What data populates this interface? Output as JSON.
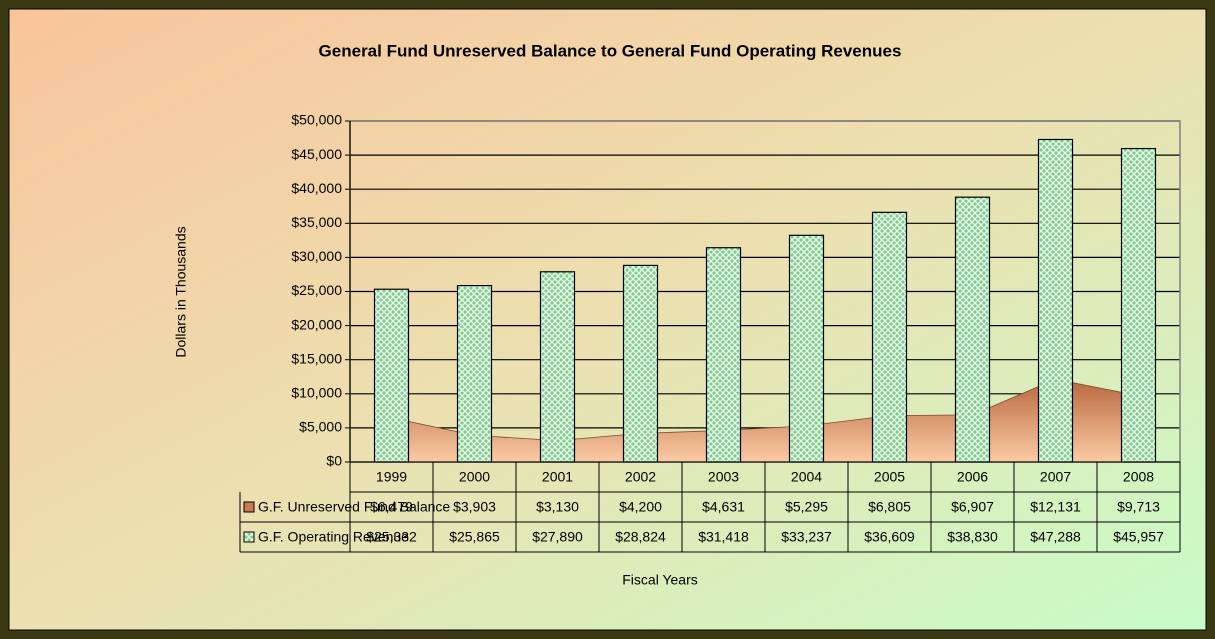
{
  "chart_data": {
    "type": "combo",
    "title": "General Fund Unreserved Balance to General Fund Operating Revenues",
    "y_label": "Dollars in Thousands",
    "x_label": "Fiscal Years",
    "categories": [
      "1999",
      "2000",
      "2001",
      "2002",
      "2003",
      "2004",
      "2005",
      "2006",
      "2007",
      "2008"
    ],
    "series": [
      {
        "name": "G.F. Unreserved Fund Balance",
        "type": "area",
        "color": "#c87a52",
        "values": [
          6479,
          3903,
          3130,
          4200,
          4631,
          5295,
          6805,
          6907,
          12131,
          9713
        ],
        "value_labels": [
          "$6,479",
          "$3,903",
          "$3,130",
          "$4,200",
          "$4,631",
          "$5,295",
          "$6,805",
          "$6,907",
          "$12,131",
          "$9,713"
        ]
      },
      {
        "name": "G.F. Operating Revenue",
        "type": "bar",
        "color": "#8fd49c",
        "values": [
          25332,
          25865,
          27890,
          28824,
          31418,
          33237,
          36609,
          38830,
          47288,
          45957
        ],
        "value_labels": [
          "$25,332",
          "$25,865",
          "$27,890",
          "$28,824",
          "$31,418",
          "$33,237",
          "$36,609",
          "$38,830",
          "$47,288",
          "$45,957"
        ]
      }
    ],
    "ylim": [
      0,
      50000
    ],
    "yticks": [
      {
        "value": 0,
        "label": "$0"
      },
      {
        "value": 5000,
        "label": "$5,000"
      },
      {
        "value": 10000,
        "label": "$10,000"
      },
      {
        "value": 15000,
        "label": "$15,000"
      },
      {
        "value": 20000,
        "label": "$20,000"
      },
      {
        "value": 25000,
        "label": "$25,000"
      },
      {
        "value": 30000,
        "label": "$30,000"
      },
      {
        "value": 35000,
        "label": "$35,000"
      },
      {
        "value": 40000,
        "label": "$40,000"
      },
      {
        "value": 45000,
        "label": "$45,000"
      },
      {
        "value": 50000,
        "label": "$50,000"
      }
    ],
    "grid": true
  }
}
